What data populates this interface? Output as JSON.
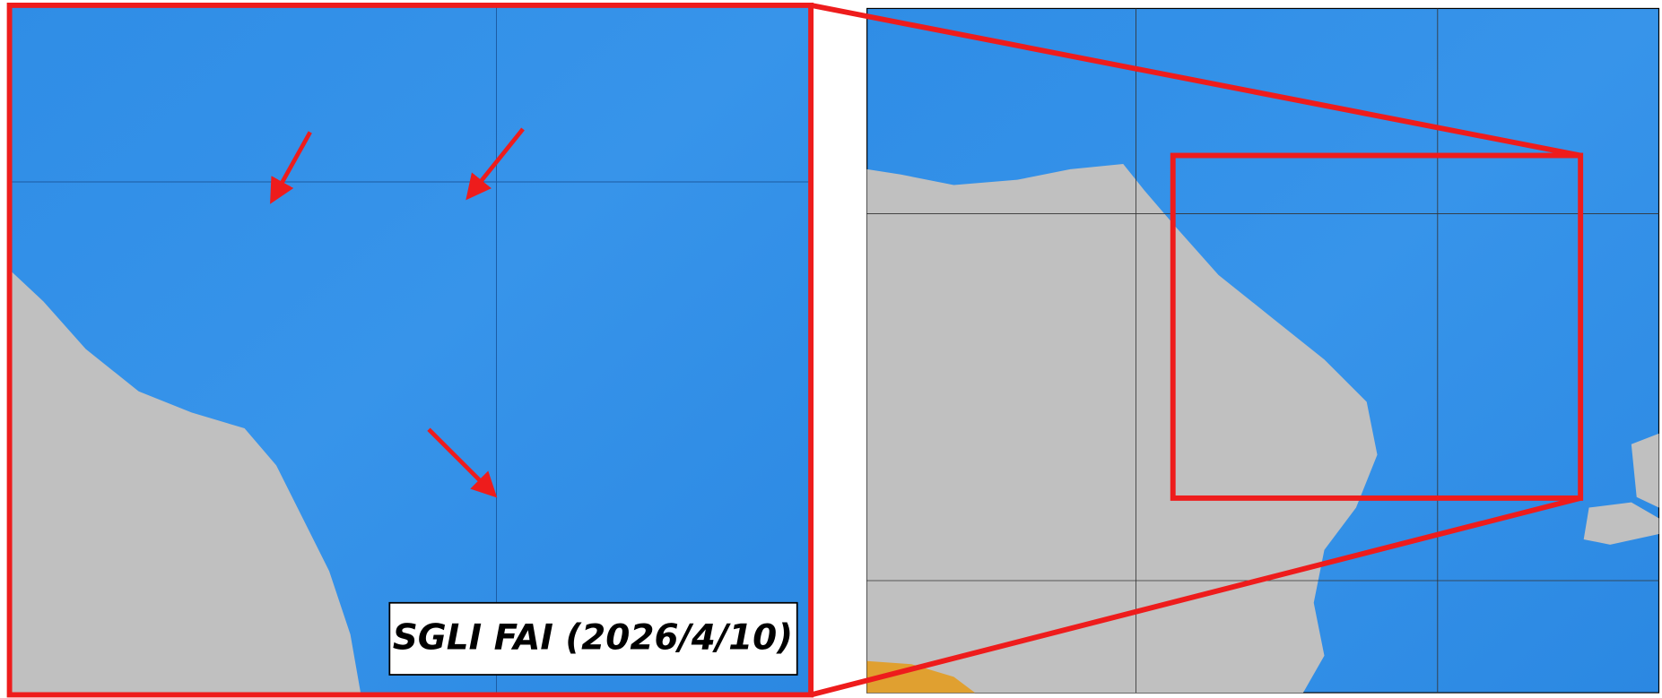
{
  "label": "SGLI FAI (2026/4/10)"
}
